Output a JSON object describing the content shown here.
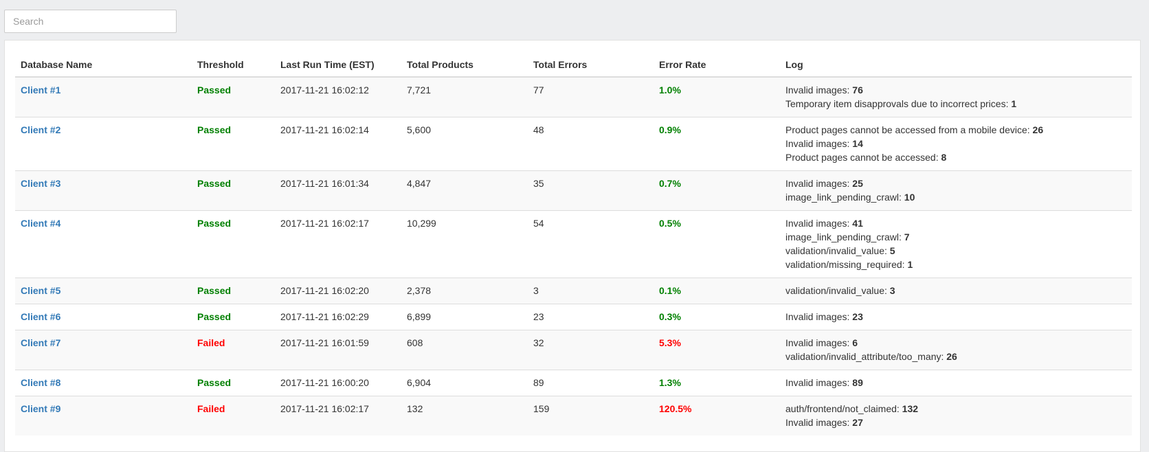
{
  "search": {
    "placeholder": "Search",
    "value": ""
  },
  "colors": {
    "passed": "#008000",
    "failed": "#ff0000",
    "link": "#337ab7"
  },
  "table": {
    "headers": {
      "database_name": "Database Name",
      "threshold": "Threshold",
      "last_run": "Last Run Time (EST)",
      "total_products": "Total Products",
      "total_errors": "Total Errors",
      "error_rate": "Error Rate",
      "log": "Log"
    },
    "rows": [
      {
        "name": "Client #1",
        "threshold": "Passed",
        "last_run": "2017-11-21 16:02:12",
        "total_products": "7,721",
        "total_errors": "77",
        "error_rate": "1.0%",
        "log": [
          {
            "label": "Invalid images:",
            "count": "76"
          },
          {
            "label": "Temporary item disapprovals due to incorrect prices:",
            "count": "1"
          }
        ]
      },
      {
        "name": "Client #2",
        "threshold": "Passed",
        "last_run": "2017-11-21 16:02:14",
        "total_products": "5,600",
        "total_errors": "48",
        "error_rate": "0.9%",
        "log": [
          {
            "label": "Product pages cannot be accessed from a mobile device:",
            "count": "26"
          },
          {
            "label": "Invalid images:",
            "count": "14"
          },
          {
            "label": "Product pages cannot be accessed:",
            "count": "8"
          }
        ]
      },
      {
        "name": "Client #3",
        "threshold": "Passed",
        "last_run": "2017-11-21 16:01:34",
        "total_products": "4,847",
        "total_errors": "35",
        "error_rate": "0.7%",
        "log": [
          {
            "label": "Invalid images:",
            "count": "25"
          },
          {
            "label": "image_link_pending_crawl:",
            "count": "10"
          }
        ]
      },
      {
        "name": "Client #4",
        "threshold": "Passed",
        "last_run": "2017-11-21 16:02:17",
        "total_products": "10,299",
        "total_errors": "54",
        "error_rate": "0.5%",
        "log": [
          {
            "label": "Invalid images:",
            "count": "41"
          },
          {
            "label": "image_link_pending_crawl:",
            "count": "7"
          },
          {
            "label": "validation/invalid_value:",
            "count": "5"
          },
          {
            "label": "validation/missing_required:",
            "count": "1"
          }
        ]
      },
      {
        "name": "Client #5",
        "threshold": "Passed",
        "last_run": "2017-11-21 16:02:20",
        "total_products": "2,378",
        "total_errors": "3",
        "error_rate": "0.1%",
        "log": [
          {
            "label": "validation/invalid_value:",
            "count": "3"
          }
        ]
      },
      {
        "name": "Client #6",
        "threshold": "Passed",
        "last_run": "2017-11-21 16:02:29",
        "total_products": "6,899",
        "total_errors": "23",
        "error_rate": "0.3%",
        "log": [
          {
            "label": "Invalid images:",
            "count": "23"
          }
        ]
      },
      {
        "name": "Client #7",
        "threshold": "Failed",
        "last_run": "2017-11-21 16:01:59",
        "total_products": "608",
        "total_errors": "32",
        "error_rate": "5.3%",
        "log": [
          {
            "label": "Invalid images:",
            "count": "6"
          },
          {
            "label": "validation/invalid_attribute/too_many:",
            "count": "26"
          }
        ]
      },
      {
        "name": "Client #8",
        "threshold": "Passed",
        "last_run": "2017-11-21 16:00:20",
        "total_products": "6,904",
        "total_errors": "89",
        "error_rate": "1.3%",
        "log": [
          {
            "label": "Invalid images:",
            "count": "89"
          }
        ]
      },
      {
        "name": "Client #9",
        "threshold": "Failed",
        "last_run": "2017-11-21 16:02:17",
        "total_products": "132",
        "total_errors": "159",
        "error_rate": "120.5%",
        "log": [
          {
            "label": "auth/frontend/not_claimed:",
            "count": "132"
          },
          {
            "label": "Invalid images:",
            "count": "27"
          }
        ]
      }
    ]
  }
}
